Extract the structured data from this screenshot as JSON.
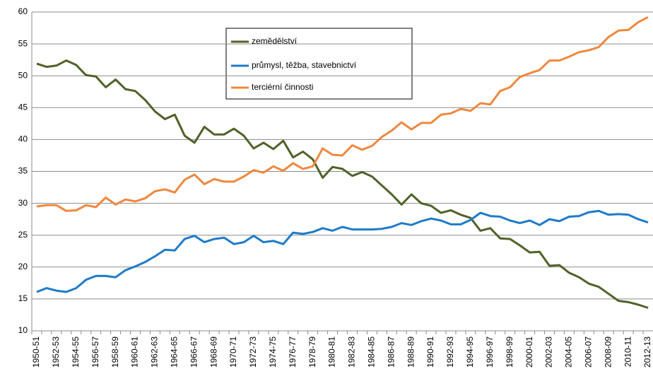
{
  "chart_data": {
    "type": "line",
    "categories": [
      "1950-51",
      null,
      "1952-53",
      null,
      "1954-55",
      null,
      "1956-57",
      null,
      "1958-59",
      null,
      "1960-61",
      null,
      "1962-63",
      null,
      "1964-65",
      null,
      "1966-67",
      null,
      "1968-69",
      null,
      "1970-71",
      null,
      "1972-73",
      null,
      "1974-75",
      null,
      "1976-77",
      null,
      "1978-79",
      null,
      "1980-81",
      null,
      "1982-83",
      null,
      "1984-85",
      null,
      "1986-87",
      null,
      "1988-89",
      null,
      "1990-91",
      null,
      "1992-93",
      null,
      "1994-95",
      null,
      "1996-97",
      null,
      "1998-99",
      null,
      "2000-01",
      null,
      "2002-03",
      null,
      "2004-05",
      null,
      "2006-07",
      null,
      "2008-09",
      null,
      "2010-11",
      null,
      "2012-13"
    ],
    "series": [
      {
        "name": "zemědělství",
        "color": "#4f6228",
        "values": [
          51.9,
          51.4,
          51.6,
          52.4,
          51.7,
          50.1,
          49.9,
          48.2,
          49.4,
          47.9,
          47.6,
          46.2,
          44.4,
          43.2,
          43.9,
          40.6,
          39.5,
          42.0,
          40.8,
          40.8,
          41.7,
          40.6,
          38.6,
          39.5,
          38.5,
          39.8,
          37.2,
          38.1,
          36.9,
          34.0,
          35.7,
          35.4,
          34.3,
          34.9,
          34.2,
          32.8,
          31.4,
          29.8,
          31.4,
          30.0,
          29.6,
          28.5,
          28.9,
          28.2,
          27.7,
          25.7,
          26.1,
          24.5,
          24.4,
          23.4,
          22.3,
          22.4,
          20.2,
          20.3,
          19.1,
          18.4,
          17.4,
          16.9,
          15.8,
          14.7,
          14.5,
          14.1,
          13.6
        ]
      },
      {
        "name": "průmysl, těžba, stavebnictví",
        "color": "#1f7bc8",
        "values": [
          16.1,
          16.7,
          16.3,
          16.1,
          16.7,
          18.0,
          18.6,
          18.6,
          18.4,
          19.5,
          20.1,
          20.8,
          21.7,
          22.7,
          22.6,
          24.4,
          24.9,
          23.9,
          24.4,
          24.6,
          23.6,
          23.9,
          24.9,
          23.9,
          24.1,
          23.6,
          25.4,
          25.2,
          25.5,
          26.1,
          25.7,
          26.3,
          25.9,
          25.9,
          25.9,
          26.0,
          26.3,
          26.9,
          26.6,
          27.2,
          27.6,
          27.3,
          26.7,
          26.7,
          27.4,
          28.5,
          28.0,
          27.9,
          27.3,
          26.9,
          27.3,
          26.6,
          27.5,
          27.2,
          27.9,
          28.0,
          28.6,
          28.8,
          28.2,
          28.3,
          28.2,
          27.5,
          27.0
        ]
      },
      {
        "name": "terciérní činnosti",
        "color": "#f0883e",
        "values": [
          29.5,
          29.7,
          29.7,
          28.8,
          28.9,
          29.7,
          29.4,
          30.9,
          29.8,
          30.6,
          30.3,
          30.8,
          31.9,
          32.2,
          31.7,
          33.7,
          34.5,
          33.0,
          33.8,
          33.4,
          33.4,
          34.2,
          35.2,
          34.8,
          35.8,
          35.1,
          36.3,
          35.4,
          35.8,
          38.6,
          37.6,
          37.5,
          39.1,
          38.4,
          39.0,
          40.4,
          41.4,
          42.7,
          41.6,
          42.6,
          42.6,
          43.9,
          44.1,
          44.8,
          44.5,
          45.7,
          45.5,
          47.6,
          48.2,
          49.8,
          50.4,
          50.9,
          52.4,
          52.4,
          53.0,
          53.7,
          54.0,
          54.5,
          56.1,
          57.1,
          57.2,
          58.4,
          59.2
        ]
      }
    ],
    "ylim": [
      10,
      60
    ],
    "yticks": [
      10,
      15,
      20,
      25,
      30,
      35,
      40,
      45,
      50,
      55,
      60
    ],
    "grid": true
  }
}
